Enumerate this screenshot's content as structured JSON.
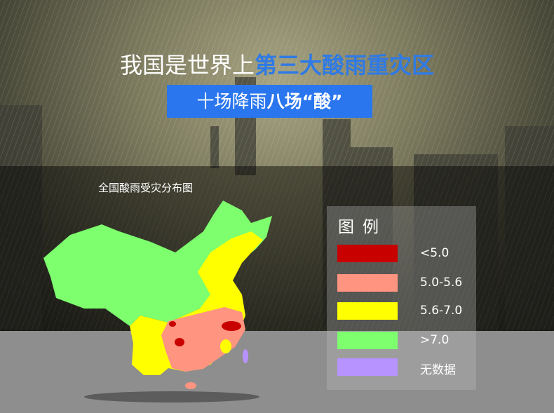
{
  "headline": {
    "part1": "我国是世界上",
    "part2": "第三大酸雨重灾区"
  },
  "subtitle": {
    "part1": "十场降雨",
    "part2": "八场“酸”"
  },
  "map": {
    "title": "全国酸雨受灾分布图"
  },
  "legend": {
    "title": "图例",
    "items": [
      {
        "label": "<5.0",
        "color": "#c80000"
      },
      {
        "label": "5.0-5.6",
        "color": "#ff9480"
      },
      {
        "label": "5.6-7.0",
        "color": "#ffff00"
      },
      {
        "label": ">7.0",
        "color": "#7dff6e"
      },
      {
        "label": "无数据",
        "color": "#b793ff"
      }
    ]
  },
  "colors": {
    "accent_blue": "#2a76ee"
  }
}
